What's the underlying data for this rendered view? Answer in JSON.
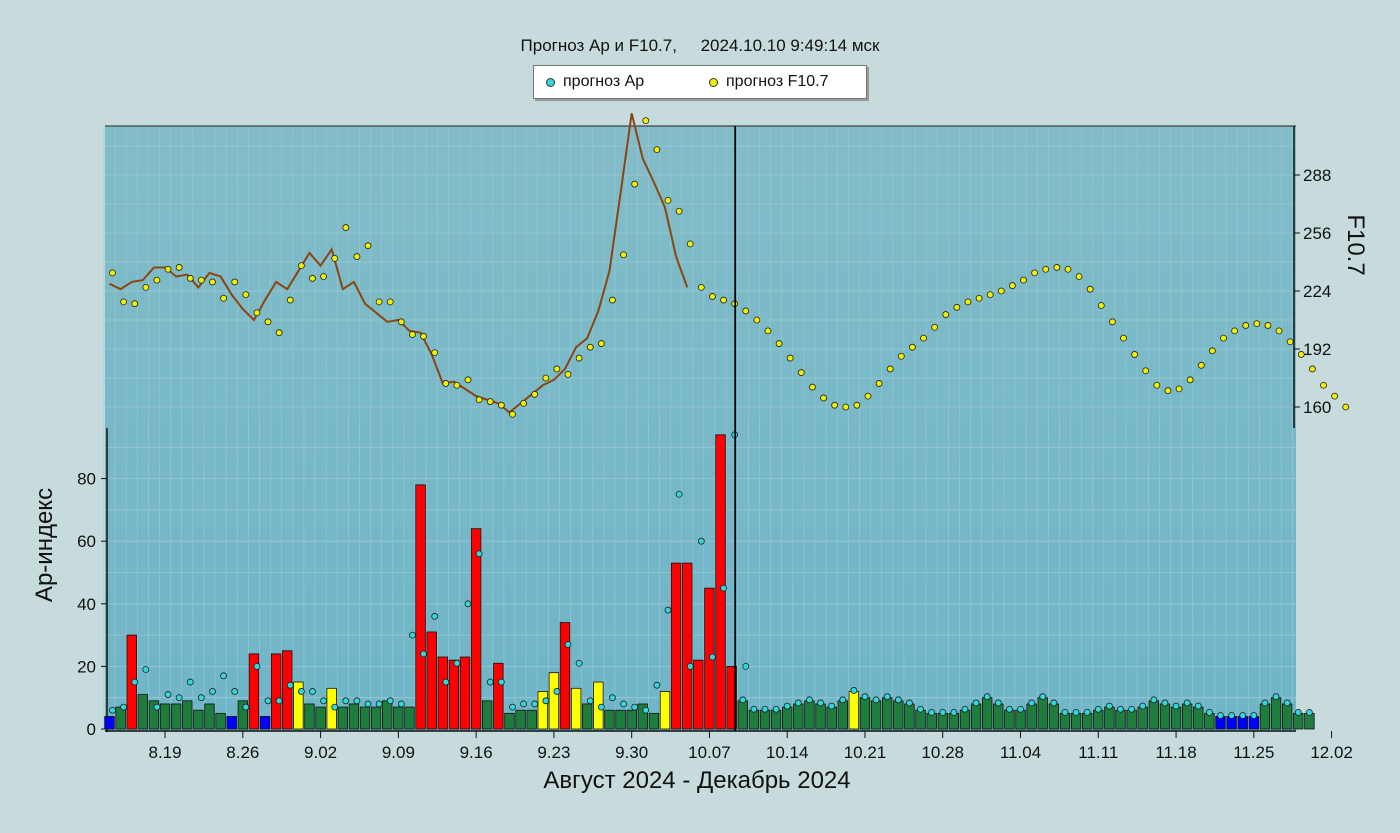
{
  "title": "Прогноз Ар и F10.7,     2024.10.10 9:49:14 мск",
  "legend": {
    "ap": "прогноз Ар",
    "f107": "прогноз F10.7"
  },
  "colors": {
    "ap_marker": "#32d8d8",
    "f107_marker": "#f0f000",
    "f107_line": "#8b4513",
    "quiet": "#1e7c3c",
    "very_quiet": "#0000ff",
    "unsettled": "#ffff00",
    "storm": "#ff0000",
    "panel_top": "#82bcc8",
    "panel_bottom": "#6fb5c8"
  },
  "chart_data": {
    "type": "bar",
    "title": "Прогноз Ар и F10.7,     2024.10.10 9:49:14 мск",
    "xlabel": "Август 2024 - Декабрь 2024",
    "ylabel": "Ар-индекс",
    "y2label": "F10.7",
    "x_ticks": [
      "8.19",
      "8.26",
      "9.02",
      "9.09",
      "9.16",
      "9.23",
      "9.30",
      "10.07",
      "10.14",
      "10.21",
      "10.28",
      "11.04",
      "11.11",
      "11.18",
      "11.25",
      "12.02"
    ],
    "ap_ticks": [
      0,
      20,
      40,
      60,
      80
    ],
    "f107_ticks": [
      160,
      192,
      224,
      256,
      288
    ],
    "ap_ylim": [
      0,
      95
    ],
    "f107_ylim": [
      143,
      310
    ],
    "start_date": "8.14",
    "current_day_index": 57,
    "ap_observed": [
      4,
      7,
      30,
      11,
      9,
      8,
      8,
      9,
      6,
      8,
      5,
      4,
      9,
      24,
      4,
      24,
      25,
      15,
      8,
      7,
      13,
      7,
      8,
      7,
      7,
      9,
      7,
      7,
      78,
      31,
      23,
      22,
      23,
      64,
      9,
      21,
      5,
      6,
      6,
      12,
      18,
      34,
      13,
      8,
      15,
      6,
      6,
      6,
      8,
      5,
      12,
      53,
      53,
      22,
      45,
      94,
      20
    ],
    "ap_forecast": [
      9,
      6,
      6,
      6,
      7,
      8,
      9,
      8,
      7,
      9,
      12,
      10,
      9,
      10,
      9,
      8,
      6,
      5,
      5,
      5,
      6,
      8,
      10,
      8,
      6,
      6,
      8,
      10,
      8,
      5,
      5,
      5,
      6,
      7,
      6,
      6,
      7,
      9,
      8,
      7,
      8,
      7,
      5,
      4,
      4,
      4,
      4,
      8,
      10,
      8,
      5,
      5
    ],
    "ap_predicted_dots": [
      6,
      7,
      15,
      19,
      7,
      11,
      10,
      15,
      10,
      12,
      17,
      12,
      7,
      20,
      9,
      9,
      14,
      12,
      12,
      9,
      7,
      9,
      9,
      8,
      8,
      9,
      8,
      30,
      24,
      36,
      15,
      21,
      40,
      56,
      15,
      15,
      7,
      8,
      8,
      9,
      12,
      27,
      21,
      9,
      7,
      10,
      8,
      7,
      6,
      14,
      38,
      75,
      20,
      60,
      23,
      45,
      94,
      20
    ],
    "f107_observed": [
      228,
      225,
      229,
      230,
      237,
      237,
      232,
      233,
      226,
      234,
      232,
      222,
      214,
      208,
      219,
      229,
      225,
      235,
      245,
      238,
      247,
      225,
      229,
      217,
      212,
      207,
      208,
      202,
      201,
      189,
      173,
      174,
      170,
      166,
      164,
      162,
      157,
      162,
      167,
      172,
      175,
      181,
      193,
      198,
      213,
      235,
      278,
      322,
      297,
      284,
      270,
      243,
      226
    ],
    "f107_dots": [
      234,
      218,
      217,
      226,
      230,
      236,
      237,
      231,
      230,
      229,
      220,
      229,
      222,
      212,
      207,
      201,
      219,
      238,
      231,
      232,
      242,
      259,
      243,
      249,
      218,
      218,
      207,
      200,
      199,
      190,
      173,
      172,
      175,
      164,
      163,
      161,
      156,
      162,
      167,
      176,
      181,
      178,
      187,
      193,
      195,
      219,
      244,
      283,
      318,
      302,
      274,
      268,
      250,
      226
    ],
    "f107_forecast": [
      221,
      219,
      217,
      213,
      208,
      202,
      195,
      187,
      179,
      171,
      165,
      161,
      160,
      161,
      166,
      173,
      181,
      188,
      193,
      198,
      204,
      211,
      215,
      218,
      220,
      222,
      224,
      227,
      230,
      234,
      236,
      237,
      236,
      232,
      225,
      216,
      207,
      198,
      189,
      180,
      172,
      169,
      170,
      175,
      183,
      191,
      198,
      202,
      205,
      206,
      205,
      202,
      196,
      189,
      181,
      172,
      166,
      160
    ]
  }
}
